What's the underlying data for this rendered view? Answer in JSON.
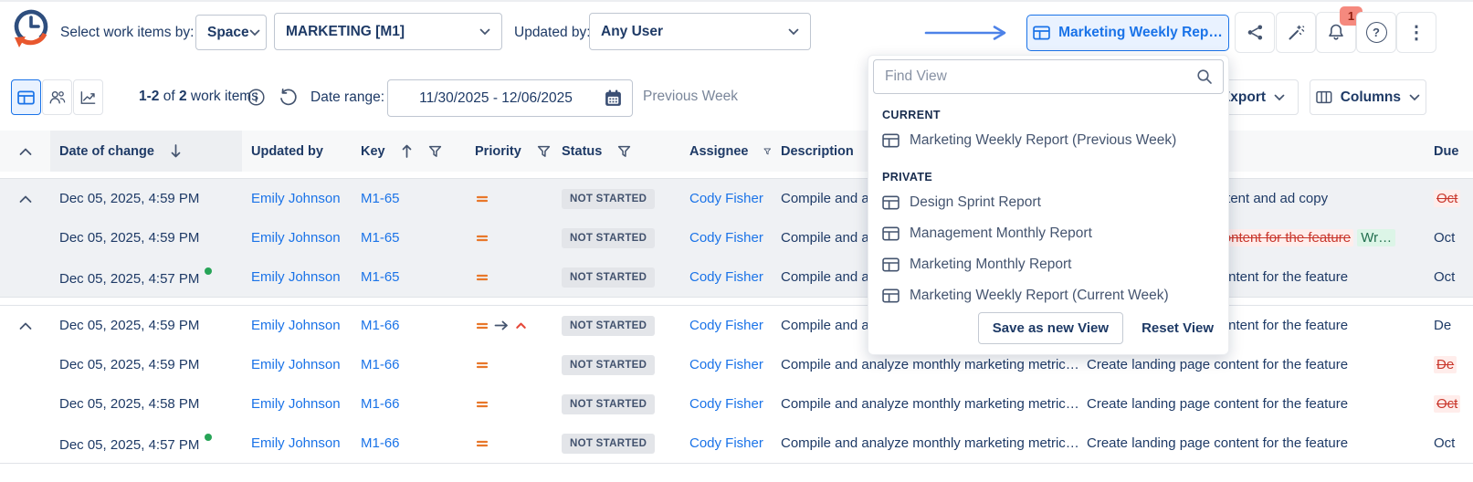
{
  "colors": {
    "accent": "#1a73e8",
    "link": "#1a73e8",
    "orange": "#e8772a",
    "red": "#c9372c",
    "red_bg": "#ffedeb",
    "green_bg": "#dcf5e7",
    "green_text": "#216e4e",
    "green_dot": "#27a457",
    "badge_bg": "#e3e5e9",
    "badge_text": "#42526e",
    "notification_bg": "#f5897e",
    "notification_text": "#8f1f10"
  },
  "header": {
    "select_label": "Select work items by:",
    "space_dropdown": "Space",
    "project_dropdown": "MARKETING [M1]",
    "updated_by_label": "Updated by:",
    "updated_by_dropdown": "Any User",
    "view_button": "Marketing Weekly Rep…",
    "notification_count": "1"
  },
  "toolbar": {
    "count_range": "1-2",
    "count_of": "of",
    "count_total": "2",
    "count_suffix": "work items",
    "date_range_label": "Date range:",
    "date_range_value": "11/30/2025 - 12/06/2025",
    "period_label": "Previous Week",
    "export_label": "Export",
    "columns_label": "Columns"
  },
  "view_menu": {
    "search_placeholder": "Find View",
    "sections": [
      {
        "title": "CURRENT",
        "items": [
          "Marketing Weekly Report (Previous Week)"
        ]
      },
      {
        "title": "PRIVATE",
        "items": [
          "Design Sprint Report",
          "Management Monthly Report",
          "Marketing Monthly Report",
          "Marketing Weekly Report (Current Week)"
        ]
      }
    ],
    "save_button": "Save as new View",
    "reset_button": "Reset View"
  },
  "table": {
    "headers": {
      "date": "Date of change",
      "updated_by": "Updated by",
      "key": "Key",
      "priority": "Priority",
      "status": "Status",
      "assignee": "Assignee",
      "description": "Description",
      "due": "Due"
    },
    "groups": [
      {
        "rows": [
          {
            "date": "Dec 05, 2025, 4:59 PM",
            "dot": false,
            "updated_by": "Emily Johnson",
            "key": "M1-65",
            "priority": "medium",
            "priority_changed_to": null,
            "status": "NOT STARTED",
            "assignee": "Cody Fisher",
            "description": "Compile and analyze monthly marketing metric…",
            "summary": {
              "text": "Write landing page content and ad copy",
              "removed": false,
              "added": null
            },
            "due": {
              "text": "Oct",
              "removed": true
            }
          },
          {
            "date": "Dec 05, 2025, 4:59 PM",
            "dot": false,
            "updated_by": "Emily Johnson",
            "key": "M1-65",
            "priority": "medium",
            "priority_changed_to": null,
            "status": "NOT STARTED",
            "assignee": "Cody Fisher",
            "description": "Compile and analyze monthly marketing metric…",
            "summary": {
              "text": "Create landing page content for the feature",
              "removed": true,
              "added": "Wr…"
            },
            "due": {
              "text": "Oct",
              "removed": false
            }
          },
          {
            "date": "Dec 05, 2025, 4:57 PM",
            "dot": true,
            "updated_by": "Emily Johnson",
            "key": "M1-65",
            "priority": "medium",
            "priority_changed_to": null,
            "status": "NOT STARTED",
            "assignee": "Cody Fisher",
            "description": "Compile and analyze monthly marketing metric…",
            "summary": {
              "text": "Create landing page content for the feature",
              "removed": false,
              "added": null
            },
            "due": {
              "text": "Oct",
              "removed": false
            }
          }
        ]
      },
      {
        "rows": [
          {
            "date": "Dec 05, 2025, 4:59 PM",
            "dot": false,
            "updated_by": "Emily Johnson",
            "key": "M1-66",
            "priority": "medium",
            "priority_changed_to": "high",
            "status": "NOT STARTED",
            "assignee": "Cody Fisher",
            "description": "Compile and analyze monthly marketing metric…",
            "summary": {
              "text": "Create landing page content for the feature",
              "removed": false,
              "added": null
            },
            "due": {
              "text": "De",
              "removed": false
            }
          },
          {
            "date": "Dec 05, 2025, 4:59 PM",
            "dot": false,
            "updated_by": "Emily Johnson",
            "key": "M1-66",
            "priority": "medium",
            "priority_changed_to": null,
            "status": "NOT STARTED",
            "assignee": "Cody Fisher",
            "description": "Compile and analyze monthly marketing metric…",
            "summary": {
              "text": "Create landing page content for the feature",
              "removed": false,
              "added": null
            },
            "due": {
              "text": "De",
              "removed": true
            }
          },
          {
            "date": "Dec 05, 2025, 4:58 PM",
            "dot": false,
            "updated_by": "Emily Johnson",
            "key": "M1-66",
            "priority": "medium",
            "priority_changed_to": null,
            "status": "NOT STARTED",
            "assignee": "Cody Fisher",
            "description": "Compile and analyze monthly marketing metric…",
            "summary": {
              "text": "Create landing page content for the feature",
              "removed": false,
              "added": null
            },
            "due": {
              "text": "Oct",
              "removed": true
            }
          },
          {
            "date": "Dec 05, 2025, 4:57 PM",
            "dot": true,
            "updated_by": "Emily Johnson",
            "key": "M1-66",
            "priority": "medium",
            "priority_changed_to": null,
            "status": "NOT STARTED",
            "assignee": "Cody Fisher",
            "description": "Compile and analyze monthly marketing metric…",
            "summary": {
              "text": "Create landing page content for the feature",
              "removed": false,
              "added": null
            },
            "due": {
              "text": "Oct",
              "removed": false
            }
          }
        ]
      }
    ]
  }
}
